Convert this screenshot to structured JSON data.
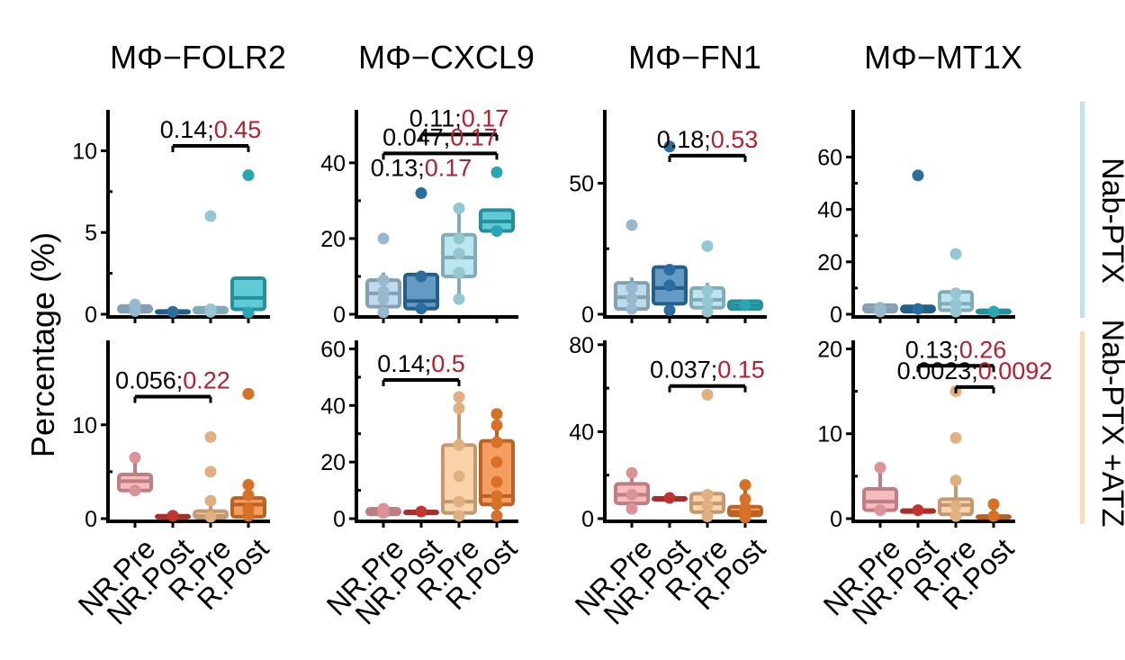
{
  "figure": {
    "y_axis_label": "Percentage (%)",
    "row_labels": [
      "Nab-PTX",
      "Nab-PTX +ATZ"
    ],
    "row_label_colors": [
      "#bfe3e6",
      "#f6dfb8"
    ],
    "group_labels": [
      "NR.Pre",
      "NR.Post",
      "R.Pre",
      "R.Post"
    ],
    "column_titles": [
      "MΦ−FOLR2",
      "MΦ−CXCL9",
      "MΦ−FN1",
      "MΦ−MT1X"
    ],
    "p_color": "#000000",
    "q_color": "#b5202e"
  },
  "chart_data": [
    {
      "type": "box",
      "row": 0,
      "col": 0,
      "title": "MΦ−FOLR2",
      "ylabel": "Percentage (%)",
      "ylim": [
        0,
        12.5
      ],
      "yticks": [
        0,
        5,
        10
      ],
      "colors": [
        "#a9cde4",
        "#2f79b0",
        "#a6dde9",
        "#2eb8c7"
      ],
      "boxes": [
        {
          "group": "NR.Pre",
          "q1": 0.15,
          "median": 0.3,
          "q3": 0.5,
          "min": 0.1,
          "max": 0.7
        },
        {
          "group": "NR.Post",
          "q1": 0.1,
          "median": 0.15,
          "q3": 0.2,
          "min": 0.1,
          "max": 0.2
        },
        {
          "group": "R.Pre",
          "q1": 0.1,
          "median": 0.2,
          "q3": 0.4,
          "min": 0.0,
          "max": 0.5
        },
        {
          "group": "R.Post",
          "q1": 0.3,
          "median": 1.0,
          "q3": 2.2,
          "min": 0.0,
          "max": 2.2
        }
      ],
      "points": [
        {
          "group": "NR.Pre",
          "values": [
            0.2,
            0.4,
            0.6
          ]
        },
        {
          "group": "NR.Post",
          "values": [
            0.15
          ]
        },
        {
          "group": "R.Pre",
          "values": [
            0.15,
            0.3,
            6.0
          ]
        },
        {
          "group": "R.Post",
          "values": [
            0.1,
            8.5
          ]
        }
      ],
      "brackets": [
        {
          "from": "NR.Post",
          "to": "R.Post",
          "y": 10.3,
          "p": "0.14;",
          "q": "0.45"
        }
      ]
    },
    {
      "type": "box",
      "row": 0,
      "col": 1,
      "title": "MΦ−CXCL9",
      "ylabel": "Percentage (%)",
      "ylim": [
        0,
        54
      ],
      "yticks": [
        0,
        20,
        40
      ],
      "colors": [
        "#a9cde4",
        "#2f79b0",
        "#a6dde9",
        "#2eb8c7"
      ],
      "boxes": [
        {
          "group": "NR.Pre",
          "q1": 2.0,
          "median": 5.5,
          "q3": 9.0,
          "min": 0.0,
          "max": 11.0
        },
        {
          "group": "NR.Post",
          "q1": 1.5,
          "median": 3.5,
          "q3": 10.5,
          "min": 1.0,
          "max": 10.5
        },
        {
          "group": "R.Pre",
          "q1": 10.0,
          "median": 15.0,
          "q3": 21.0,
          "min": 4.0,
          "max": 28.0
        },
        {
          "group": "R.Post",
          "q1": 22.0,
          "median": 24.5,
          "q3": 27.5,
          "min": 22.0,
          "max": 27.5
        }
      ],
      "points": [
        {
          "group": "NR.Pre",
          "values": [
            0.5,
            4.0,
            6.0,
            9.0,
            20.0
          ]
        },
        {
          "group": "NR.Post",
          "values": [
            1.5,
            10.0,
            32.0
          ]
        },
        {
          "group": "R.Pre",
          "values": [
            4.0,
            11.0,
            16.0,
            20.0,
            28.0
          ]
        },
        {
          "group": "R.Post",
          "values": [
            22.0,
            37.5
          ]
        }
      ],
      "brackets": [
        {
          "from": "NR.Post",
          "to": "R.Post",
          "y": 47.5,
          "p": "0.11;",
          "q": "0.17"
        },
        {
          "from": "NR.Pre",
          "to": "R.Post",
          "y": 42.5,
          "p": "0.047;",
          "q": "0.17"
        }
      ],
      "annotations": [
        {
          "x_group": "NR.Post",
          "y": 36.5,
          "p": "0.13;",
          "q": "0.17"
        }
      ]
    },
    {
      "type": "box",
      "row": 0,
      "col": 2,
      "title": "MΦ−FN1",
      "ylabel": "Percentage (%)",
      "ylim": [
        0,
        78
      ],
      "yticks": [
        0,
        50
      ],
      "colors": [
        "#a9cde4",
        "#2f79b0",
        "#a6dde9",
        "#2eb8c7"
      ],
      "boxes": [
        {
          "group": "NR.Pre",
          "q1": 2.0,
          "median": 6.5,
          "q3": 12.0,
          "min": 1.0,
          "max": 14.0
        },
        {
          "group": "NR.Post",
          "q1": 4.0,
          "median": 10.0,
          "q3": 18.0,
          "min": 1.0,
          "max": 18.0
        },
        {
          "group": "R.Pre",
          "q1": 2.5,
          "median": 5.5,
          "q3": 10.0,
          "min": 1.0,
          "max": 12.0
        },
        {
          "group": "R.Post",
          "q1": 2.0,
          "median": 3.5,
          "q3": 5.0,
          "min": 1.5,
          "max": 5.5
        }
      ],
      "points": [
        {
          "group": "NR.Pre",
          "values": [
            2.0,
            6.0,
            10.0,
            34.0
          ]
        },
        {
          "group": "NR.Post",
          "values": [
            1.5,
            11.0,
            17.0,
            64.0
          ]
        },
        {
          "group": "R.Pre",
          "values": [
            1.0,
            5.0,
            9.0,
            26.0
          ]
        },
        {
          "group": "R.Post",
          "values": [
            3.5
          ]
        }
      ],
      "brackets": [
        {
          "from": "NR.Post",
          "to": "R.Post",
          "y": 60.5,
          "p": "0.18;",
          "q": "0.53"
        }
      ]
    },
    {
      "type": "box",
      "row": 0,
      "col": 3,
      "title": "MΦ−MT1X",
      "ylabel": "Percentage (%)",
      "ylim": [
        0,
        78
      ],
      "yticks": [
        0,
        20,
        40,
        60
      ],
      "colors": [
        "#a9cde4",
        "#2f79b0",
        "#a6dde9",
        "#2eb8c7"
      ],
      "boxes": [
        {
          "group": "NR.Pre",
          "q1": 1.0,
          "median": 2.0,
          "q3": 3.5,
          "min": 0.5,
          "max": 4.0
        },
        {
          "group": "NR.Post",
          "q1": 1.0,
          "median": 2.0,
          "q3": 3.0,
          "min": 1.0,
          "max": 3.0
        },
        {
          "group": "R.Pre",
          "q1": 1.5,
          "median": 4.0,
          "q3": 8.5,
          "min": 0.5,
          "max": 10.0
        },
        {
          "group": "R.Post",
          "q1": 0.5,
          "median": 1.0,
          "q3": 1.5,
          "min": 0.5,
          "max": 1.5
        }
      ],
      "points": [
        {
          "group": "NR.Pre",
          "values": [
            1.0,
            2.5
          ]
        },
        {
          "group": "NR.Post",
          "values": [
            2.0,
            53.0
          ]
        },
        {
          "group": "R.Pre",
          "values": [
            1.0,
            4.0,
            8.0,
            23.0
          ]
        },
        {
          "group": "R.Post",
          "values": [
            1.0
          ]
        }
      ],
      "brackets": []
    },
    {
      "type": "box",
      "row": 1,
      "col": 0,
      "title": "MΦ−FOLR2",
      "ylabel": "Percentage (%)",
      "ylim": [
        0,
        19
      ],
      "yticks": [
        0,
        10
      ],
      "colors": [
        "#f4a3a8",
        "#d83a34",
        "#f9c48f",
        "#f07e2c"
      ],
      "boxes": [
        {
          "group": "NR.Pre",
          "q1": 3.0,
          "median": 4.0,
          "q3": 4.7,
          "min": 3.0,
          "max": 6.5
        },
        {
          "group": "NR.Post",
          "q1": 0.3,
          "median": 0.3,
          "q3": 0.3,
          "min": 0.3,
          "max": 0.3
        },
        {
          "group": "R.Pre",
          "q1": 0.1,
          "median": 0.3,
          "q3": 0.8,
          "min": 0.0,
          "max": 2.0
        },
        {
          "group": "R.Post",
          "q1": 0.2,
          "median": 1.5,
          "q3": 2.2,
          "min": 0.1,
          "max": 3.6
        }
      ],
      "points": [
        {
          "group": "NR.Pre",
          "values": [
            3.0,
            6.5
          ]
        },
        {
          "group": "NR.Post",
          "values": [
            0.3
          ]
        },
        {
          "group": "R.Pre",
          "values": [
            0.2,
            1.9,
            5.0,
            8.7
          ]
        },
        {
          "group": "R.Post",
          "values": [
            0.3,
            1.0,
            2.5,
            3.6,
            13.3
          ]
        }
      ],
      "brackets": [
        {
          "from": "NR.Pre",
          "to": "R.Pre",
          "y": 13.0,
          "p": "0.056;",
          "q": "0.22"
        }
      ]
    },
    {
      "type": "box",
      "row": 1,
      "col": 1,
      "title": "MΦ−CXCL9",
      "ylabel": "Percentage (%)",
      "ylim": [
        0,
        63
      ],
      "yticks": [
        0,
        20,
        40,
        60
      ],
      "colors": [
        "#f4a3a8",
        "#d83a34",
        "#f9c48f",
        "#f07e2c"
      ],
      "boxes": [
        {
          "group": "NR.Pre",
          "q1": 1.5,
          "median": 2.5,
          "q3": 3.5,
          "min": 1.0,
          "max": 4.0
        },
        {
          "group": "NR.Post",
          "q1": 2.5,
          "median": 2.5,
          "q3": 2.5,
          "min": 2.5,
          "max": 2.5
        },
        {
          "group": "R.Pre",
          "q1": 2.0,
          "median": 6.0,
          "q3": 26.0,
          "min": 0.0,
          "max": 43.0
        },
        {
          "group": "R.Post",
          "q1": 5.0,
          "median": 8.0,
          "q3": 27.5,
          "min": 0.0,
          "max": 37.0
        }
      ],
      "points": [
        {
          "group": "NR.Pre",
          "values": [
            2.0,
            3.5
          ]
        },
        {
          "group": "NR.Post",
          "values": [
            2.5
          ]
        },
        {
          "group": "R.Pre",
          "values": [
            1.0,
            6.0,
            15.0,
            26.0,
            39.0,
            43.0
          ]
        },
        {
          "group": "R.Post",
          "values": [
            1.0,
            5.0,
            8.0,
            13.0,
            20.0,
            27.0,
            33.0,
            37.0
          ]
        }
      ],
      "brackets": [
        {
          "from": "NR.Pre",
          "to": "R.Pre",
          "y": 49.0,
          "p": "0.14;",
          "q": "0.5"
        }
      ]
    },
    {
      "type": "box",
      "row": 1,
      "col": 2,
      "title": "MΦ−FN1",
      "ylabel": "Percentage (%)",
      "ylim": [
        0,
        82
      ],
      "yticks": [
        0,
        40,
        80
      ],
      "colors": [
        "#f4a3a8",
        "#d83a34",
        "#f9c48f",
        "#f07e2c"
      ],
      "boxes": [
        {
          "group": "NR.Pre",
          "q1": 7.0,
          "median": 11.0,
          "q3": 16.0,
          "min": 4.5,
          "max": 21.0
        },
        {
          "group": "NR.Post",
          "q1": 9.5,
          "median": 9.5,
          "q3": 9.5,
          "min": 9.5,
          "max": 9.5
        },
        {
          "group": "R.Pre",
          "q1": 3.0,
          "median": 7.0,
          "q3": 11.5,
          "min": 1.0,
          "max": 11.5
        },
        {
          "group": "R.Post",
          "q1": 1.5,
          "median": 3.0,
          "q3": 5.5,
          "min": 0.5,
          "max": 15.5
        }
      ],
      "points": [
        {
          "group": "NR.Pre",
          "values": [
            4.5,
            11.0,
            21.0
          ]
        },
        {
          "group": "NR.Post",
          "values": [
            9.5
          ]
        },
        {
          "group": "R.Pre",
          "values": [
            1.0,
            6.0,
            11.0,
            57.0
          ]
        },
        {
          "group": "R.Post",
          "values": [
            0.5,
            3.0,
            5.0,
            9.0,
            15.5
          ]
        }
      ],
      "brackets": [
        {
          "from": "NR.Post",
          "to": "R.Post",
          "y": 61.0,
          "p": "0.037;",
          "q": "0.15"
        }
      ]
    },
    {
      "type": "box",
      "row": 1,
      "col": 3,
      "title": "MΦ−MT1X",
      "ylabel": "Percentage (%)",
      "ylim": [
        0,
        21
      ],
      "yticks": [
        0,
        10,
        20
      ],
      "colors": [
        "#f4a3a8",
        "#d83a34",
        "#f9c48f",
        "#f07e2c"
      ],
      "boxes": [
        {
          "group": "NR.Pre",
          "q1": 1.0,
          "median": 2.0,
          "q3": 3.5,
          "min": 0.5,
          "max": 6.0
        },
        {
          "group": "NR.Post",
          "q1": 1.0,
          "median": 1.0,
          "q3": 1.0,
          "min": 1.0,
          "max": 1.0
        },
        {
          "group": "R.Pre",
          "q1": 0.5,
          "median": 1.6,
          "q3": 2.3,
          "min": 0.0,
          "max": 4.3
        },
        {
          "group": "R.Post",
          "q1": 0.1,
          "median": 0.2,
          "q3": 0.3,
          "min": 0.0,
          "max": 1.7
        }
      ],
      "points": [
        {
          "group": "NR.Pre",
          "values": [
            1.0,
            6.0
          ]
        },
        {
          "group": "NR.Post",
          "values": [
            1.0
          ]
        },
        {
          "group": "R.Pre",
          "values": [
            0.3,
            1.5,
            4.5,
            9.5,
            15.0
          ]
        },
        {
          "group": "R.Post",
          "values": [
            0.3,
            1.7
          ]
        }
      ],
      "brackets": [
        {
          "from": "NR.Post",
          "to": "R.Post",
          "y": 18.0,
          "p": "0.13;",
          "q": "0.26"
        },
        {
          "from": "R.Pre",
          "to": "R.Post",
          "y": 15.5,
          "p": "0.0023;",
          "q": "0.0092"
        }
      ]
    }
  ]
}
